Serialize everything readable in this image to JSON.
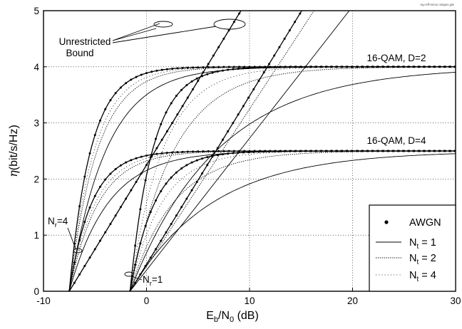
{
  "chart_data": {
    "type": "line",
    "title": "",
    "watermark": "ray-eff-mimo-16qam.gle",
    "xlabel": {
      "base": "E",
      "sub1": "b",
      "mid": "/N",
      "sub2": "0",
      "tail": " (dB)"
    },
    "ylabel": {
      "symbol": "η",
      "unit": "(bit/s/Hz)"
    },
    "xlim": [
      -10,
      30
    ],
    "ylim": [
      0,
      5
    ],
    "xticks": [
      -10,
      0,
      10,
      20,
      30
    ],
    "yticks": [
      0,
      1,
      2,
      3,
      4,
      5
    ],
    "grid": true,
    "legend_position": "bottom-right",
    "legend": [
      {
        "label": "AWGN",
        "marker": "dot"
      },
      {
        "label_base": "N",
        "label_sub": "t",
        "label_tail": " = 1",
        "style": "solid"
      },
      {
        "label_base": "N",
        "label_sub": "t",
        "label_tail": " = 2",
        "style": "dotted"
      },
      {
        "label_base": "N",
        "label_sub": "t",
        "label_tail": " = 4",
        "style": "dotted-fine"
      }
    ],
    "annotations": {
      "unrestricted": [
        "Unrestricted",
        "Bound"
      ],
      "d2": "16-QAM, D=2",
      "d4": "16-QAM, D=4",
      "nr4": {
        "base": "N",
        "sub": "r",
        "tail": "=4"
      },
      "nr1": {
        "base": "N",
        "sub": "r",
        "tail": "=1"
      }
    },
    "series_groups": [
      {
        "receive_antennas": 4,
        "code_rate_bound": 4,
        "threshold_db": -7.5,
        "unrestricted_slope": 0.3,
        "sat_levels": [
          4,
          2.5
        ],
        "curves": [
          {
            "set": "AWGN",
            "x0": -7.5,
            "t": [
              2.1,
              2.2
            ],
            "marker": "dot"
          },
          {
            "set": "Nt=4",
            "x0": -7.5,
            "t": [
              2.45,
              2.55
            ],
            "style": "dotted-fine"
          },
          {
            "set": "Nt=2",
            "x0": -7.5,
            "t": [
              2.75,
              2.85
            ],
            "style": "dotted"
          },
          {
            "set": "Nt=1",
            "x0": -7.5,
            "t": [
              3.6,
              3.8
            ],
            "style": "solid"
          }
        ]
      },
      {
        "receive_antennas": 1,
        "code_rate_bound": 4,
        "threshold_db": -1.6,
        "unrestricted_slopes": {
          "AWGN": 0.3,
          "Nt=4": 0.3,
          "Nt=2": 0.28,
          "Nt=1": 0.235
        },
        "sat_levels": [
          4,
          2.5
        ],
        "curves": [
          {
            "set": "AWGN",
            "x0": -1.6,
            "t": [
              2.2,
              2.4
            ],
            "marker": "dot"
          },
          {
            "set": "Nt=4",
            "x0": -1.6,
            "t": [
              3.2,
              3.1
            ],
            "style": "dotted-fine"
          },
          {
            "set": "Nt=2",
            "x0": -1.6,
            "t": [
              4.3,
              4.2
            ],
            "style": "dotted"
          },
          {
            "set": "Nt=1",
            "x0": -1.6,
            "t": [
              8.5,
              8.0
            ],
            "style": "solid"
          }
        ]
      }
    ]
  }
}
